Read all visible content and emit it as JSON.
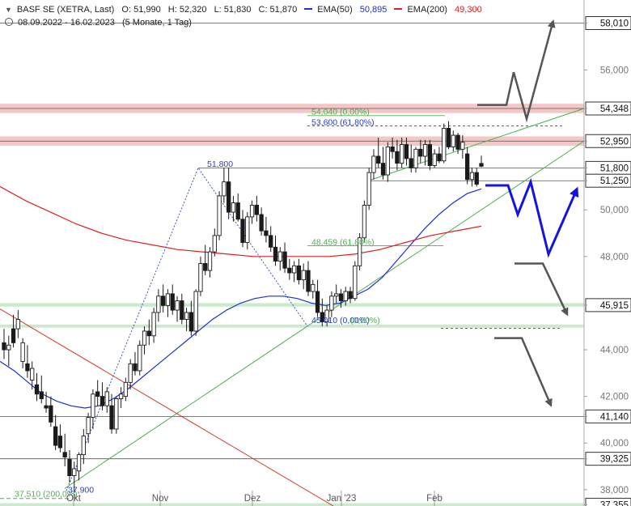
{
  "header": {
    "symbol": "BASF SE (XETRA, Last)",
    "open": "O: 51,990",
    "high": "H: 52,320",
    "low": "L: 51,830",
    "close": "C: 51,870",
    "ema50_label": "EMA(50)",
    "ema50_value": "50,895",
    "ema200_label": "EMA(200)",
    "ema200_value": "49,300",
    "range": "08.09.2022 - 16.02.2023",
    "period": "(5 Monate, 1 Tag)"
  },
  "colors": {
    "candle": "#1a1a1a",
    "ema50": "#1f2fd6",
    "ema200": "#e02020",
    "trend_green": "#4caf50",
    "trend_red": "#d33a2a",
    "resistance_band": "#f2b3b3",
    "support_band": "#b9e3b9",
    "scenario_gray": "#555555",
    "scenario_blue": "#1414e0"
  },
  "chart_data": {
    "type": "candlestick",
    "y_axis": {
      "ticks": [
        "58,010",
        "56,000",
        "54,348",
        "52,950",
        "51,800",
        "51,250",
        "50,000",
        "48,000",
        "45,915",
        "44,000",
        "42,000",
        "41,140",
        "40,000",
        "39,325",
        "38,000",
        "37,355"
      ],
      "boxed_levels": [
        "58,010",
        "54,348",
        "52,950",
        "51,800",
        "51,250",
        "45,915",
        "41,140",
        "39,325",
        "37,355"
      ],
      "ylim": [
        37.3,
        59.0
      ]
    },
    "x_axis": {
      "ticks": [
        "Okt",
        "Nov",
        "Dez",
        "Jan '23",
        "Feb"
      ],
      "range": [
        "08.09.2022",
        "16.02.2023"
      ]
    },
    "ohlc": [
      [
        44.3,
        44.9,
        43.6,
        44.0
      ],
      [
        44.0,
        44.6,
        43.3,
        44.2
      ],
      [
        44.9,
        45.5,
        44.1,
        44.3
      ],
      [
        44.9,
        45.7,
        44.5,
        45.3
      ],
      [
        43.5,
        44.5,
        43.2,
        44.3
      ],
      [
        43.4,
        44.2,
        42.8,
        43.1
      ],
      [
        42.7,
        43.5,
        42.3,
        43.2
      ],
      [
        42.5,
        43.0,
        41.8,
        42.1
      ],
      [
        42.2,
        42.9,
        41.7,
        41.9
      ],
      [
        41.6,
        42.2,
        41.3,
        41.5
      ],
      [
        41.6,
        42.0,
        40.7,
        40.9
      ],
      [
        40.7,
        41.2,
        39.7,
        39.9
      ],
      [
        40.3,
        40.8,
        39.6,
        39.8
      ],
      [
        39.6,
        40.4,
        39.0,
        39.4
      ],
      [
        39.3,
        39.7,
        38.3,
        38.6
      ],
      [
        38.6,
        39.2,
        37.9,
        38.9
      ],
      [
        38.8,
        39.6,
        38.4,
        39.5
      ],
      [
        39.5,
        40.6,
        39.1,
        40.3
      ],
      [
        40.4,
        41.3,
        40.0,
        41.1
      ],
      [
        41.1,
        42.3,
        40.6,
        42.1
      ],
      [
        42.2,
        42.7,
        41.6,
        42.0
      ],
      [
        42.0,
        42.6,
        41.4,
        41.6
      ],
      [
        41.6,
        42.4,
        41.3,
        42.2
      ],
      [
        41.6,
        42.1,
        40.4,
        40.6
      ],
      [
        40.6,
        42.0,
        40.4,
        41.9
      ],
      [
        41.9,
        42.4,
        41.5,
        42.1
      ],
      [
        42.0,
        42.8,
        41.8,
        42.6
      ],
      [
        42.6,
        43.6,
        42.3,
        43.4
      ],
      [
        43.4,
        43.9,
        42.9,
        43.1
      ],
      [
        43.1,
        44.4,
        42.9,
        44.2
      ],
      [
        44.2,
        45.0,
        43.8,
        44.8
      ],
      [
        44.8,
        45.3,
        44.2,
        44.6
      ],
      [
        44.6,
        45.8,
        44.3,
        45.6
      ],
      [
        45.6,
        46.6,
        45.2,
        46.3
      ],
      [
        46.3,
        46.8,
        45.6,
        45.9
      ],
      [
        45.9,
        46.6,
        45.4,
        46.4
      ],
      [
        46.4,
        46.8,
        45.5,
        45.7
      ],
      [
        45.7,
        46.3,
        45.2,
        46.1
      ],
      [
        46.1,
        46.4,
        45.1,
        45.3
      ],
      [
        45.3,
        45.8,
        44.8,
        45.6
      ],
      [
        45.6,
        46.1,
        44.6,
        44.8
      ],
      [
        44.8,
        46.6,
        44.6,
        46.5
      ],
      [
        46.5,
        48.0,
        46.3,
        47.7
      ],
      [
        47.7,
        48.5,
        47.2,
        47.4
      ],
      [
        47.4,
        48.4,
        47.1,
        48.2
      ],
      [
        48.2,
        49.2,
        48.0,
        48.9
      ],
      [
        48.9,
        50.8,
        48.7,
        50.6
      ],
      [
        50.6,
        51.8,
        50.3,
        51.2
      ],
      [
        51.2,
        51.8,
        49.6,
        49.9
      ],
      [
        49.9,
        50.6,
        49.5,
        50.3
      ],
      [
        50.3,
        50.7,
        49.5,
        49.6
      ],
      [
        49.6,
        50.0,
        48.4,
        48.6
      ],
      [
        48.6,
        49.9,
        48.3,
        49.7
      ],
      [
        49.7,
        50.4,
        49.4,
        50.2
      ],
      [
        50.2,
        50.6,
        49.5,
        49.8
      ],
      [
        49.8,
        50.1,
        48.9,
        49.1
      ],
      [
        49.1,
        49.7,
        48.6,
        48.9
      ],
      [
        48.9,
        49.3,
        48.2,
        48.4
      ],
      [
        48.4,
        48.9,
        47.6,
        47.8
      ],
      [
        47.8,
        48.4,
        47.4,
        48.2
      ],
      [
        48.2,
        48.6,
        47.3,
        47.5
      ],
      [
        47.5,
        47.9,
        47.0,
        47.3
      ],
      [
        47.3,
        47.8,
        46.9,
        47.6
      ],
      [
        47.6,
        47.9,
        46.8,
        47.0
      ],
      [
        47.0,
        47.7,
        46.6,
        47.4
      ],
      [
        47.4,
        47.8,
        46.3,
        46.5
      ],
      [
        46.5,
        47.0,
        46.2,
        46.8
      ],
      [
        46.5,
        47.0,
        45.4,
        45.6
      ],
      [
        45.6,
        46.2,
        45.0,
        45.2
      ],
      [
        45.2,
        45.9,
        45.0,
        45.7
      ],
      [
        45.7,
        46.5,
        45.4,
        46.3
      ],
      [
        46.3,
        46.8,
        46.0,
        46.4
      ],
      [
        46.4,
        46.6,
        45.8,
        46.1
      ],
      [
        46.1,
        46.7,
        45.9,
        46.5
      ],
      [
        46.5,
        46.7,
        46.0,
        46.2
      ],
      [
        46.2,
        47.8,
        46.1,
        47.6
      ],
      [
        47.6,
        49.0,
        47.4,
        48.8
      ],
      [
        48.8,
        50.4,
        48.6,
        50.2
      ],
      [
        50.2,
        51.8,
        50.0,
        51.6
      ],
      [
        51.6,
        52.6,
        51.3,
        52.3
      ],
      [
        52.3,
        53.1,
        51.8,
        52.0
      ],
      [
        52.0,
        52.7,
        51.3,
        51.5
      ],
      [
        51.5,
        52.9,
        51.2,
        52.7
      ],
      [
        52.7,
        53.1,
        52.2,
        52.5
      ],
      [
        52.5,
        53.0,
        51.7,
        52.0
      ],
      [
        52.0,
        53.1,
        51.8,
        52.8
      ],
      [
        52.8,
        53.1,
        51.9,
        52.2
      ],
      [
        52.2,
        52.8,
        51.6,
        51.8
      ],
      [
        51.8,
        52.7,
        51.6,
        52.6
      ],
      [
        52.6,
        53.0,
        52.0,
        52.3
      ],
      [
        52.3,
        53.0,
        51.9,
        52.8
      ],
      [
        52.8,
        53.0,
        51.7,
        51.9
      ],
      [
        51.9,
        52.6,
        51.8,
        52.4
      ],
      [
        52.4,
        52.7,
        52.0,
        52.1
      ],
      [
        52.1,
        53.7,
        52.0,
        53.5
      ],
      [
        53.5,
        53.8,
        52.6,
        52.7
      ],
      [
        52.7,
        53.4,
        52.5,
        53.2
      ],
      [
        53.2,
        53.3,
        52.4,
        52.6
      ],
      [
        52.6,
        53.2,
        52.2,
        52.9
      ],
      [
        52.4,
        52.7,
        51.1,
        51.3
      ],
      [
        51.3,
        51.8,
        51.0,
        51.6
      ],
      [
        51.6,
        51.8,
        51.0,
        51.1
      ],
      [
        51.99,
        52.32,
        51.83,
        51.87
      ]
    ],
    "ema50": [
      43.5,
      43.1,
      42.6,
      42.1,
      41.8,
      41.6,
      41.5,
      41.6,
      41.9,
      42.3,
      42.8,
      43.3,
      43.8,
      44.3,
      44.8,
      45.3,
      45.7,
      46.0,
      46.2,
      46.3,
      46.3,
      46.2,
      46.0,
      45.9,
      46.0,
      46.3,
      46.6,
      47.1,
      47.8,
      48.5,
      49.2,
      49.8,
      50.3,
      50.7,
      50.9
    ],
    "ema200": [
      51.0,
      50.4,
      49.9,
      49.4,
      49.0,
      48.7,
      48.5,
      48.3,
      48.2,
      48.1,
      48.0,
      48.0,
      48.0,
      48.0,
      48.1,
      48.3,
      48.6,
      48.9,
      49.1,
      49.3
    ],
    "annotations": [
      "54,040 (0,00%)",
      "53,600 (61,80%)",
      "51,800",
      "48,459 (61,80%)",
      "45,010 (0,00%)",
      "(0,00%)",
      "37,510 (200,0%)",
      "37,900"
    ]
  }
}
